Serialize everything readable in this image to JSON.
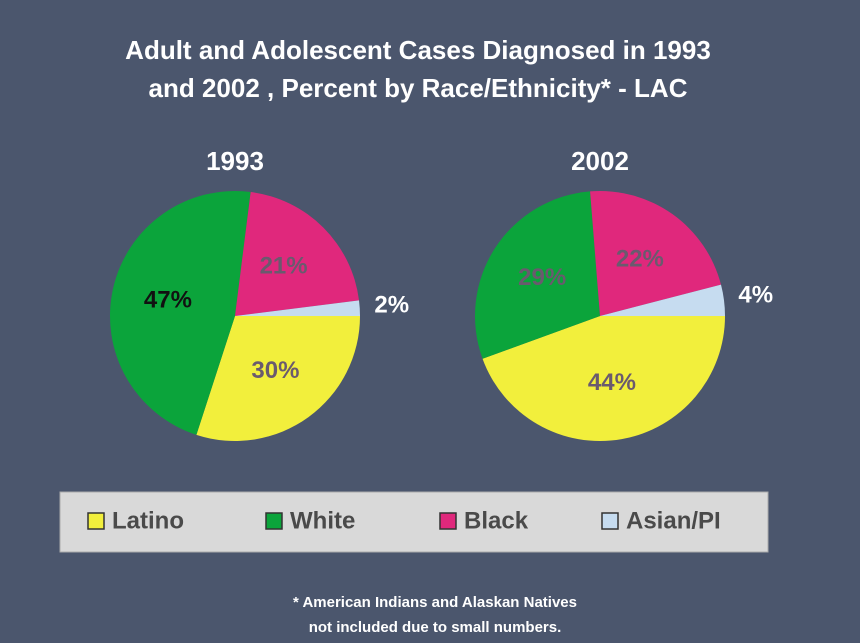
{
  "title_lines": [
    "Adult and Adolescent Cases Diagnosed in 1993",
    "and 2002 , Percent by Race/Ethnicity* - LAC"
  ],
  "footnote_lines": [
    "* American Indians and Alaskan Natives",
    "not included due to small numbers."
  ],
  "chart_data": [
    {
      "type": "pie",
      "title": "1993",
      "categories": [
        "Latino",
        "White",
        "Black",
        "Asian/PI"
      ],
      "colors": [
        "#f2ef3c",
        "#0ba43b",
        "#e0287c",
        "#c6dcf0"
      ],
      "values": [
        30,
        47,
        21,
        2
      ],
      "value_labels": [
        "30%",
        "47%",
        "21%",
        "2%"
      ]
    },
    {
      "type": "pie",
      "title": "2002",
      "categories": [
        "Latino",
        "White",
        "Black",
        "Asian/PI"
      ],
      "colors": [
        "#f2ef3c",
        "#0ba43b",
        "#e0287c",
        "#c6dcf0"
      ],
      "values": [
        44,
        29,
        22,
        4
      ],
      "value_labels": [
        "44%",
        "29%",
        "22%",
        "4%"
      ]
    }
  ]
}
